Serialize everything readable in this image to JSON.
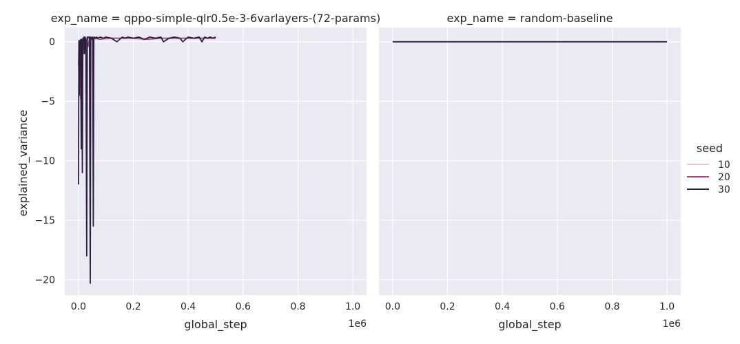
{
  "chart_data": {
    "type": "line",
    "facet_variable": "exp_name",
    "hue_variable": "seed",
    "xlabel": "global_step",
    "ylabel": "explained_variance",
    "x_offset_label": "1e6",
    "x_scale": 1000000,
    "xlim": [
      -50000,
      1050000
    ],
    "ylim": [
      -21.3,
      1.2
    ],
    "xticks": [
      0,
      200000,
      400000,
      600000,
      800000,
      1000000
    ],
    "xtick_labels": [
      "0.0",
      "0.2",
      "0.4",
      "0.6",
      "0.8",
      "1.0"
    ],
    "yticks": [
      0,
      -5,
      -10,
      -15,
      -20
    ],
    "ytick_labels": [
      "0",
      "−5",
      "−10",
      "−15",
      "−20"
    ],
    "grid": true,
    "legend": {
      "title": "seed",
      "placement": "right",
      "entries": [
        {
          "label": "10",
          "color": "#ebc5c7"
        },
        {
          "label": "20",
          "color": "#9b4f7e"
        },
        {
          "label": "30",
          "color": "#2d1e3e"
        }
      ]
    },
    "panels": [
      {
        "title": "exp_name = qppo-simple-qlr0.5e-3-6varlayers-(72-params)",
        "series": [
          {
            "name": "10",
            "color": "#ebc5c7",
            "x": [
              0,
              2000,
              4000,
              6000,
              8000,
              10000,
              12000,
              14000,
              16000,
              20000,
              25000,
              30000,
              40000,
              50000,
              60000,
              80000,
              100000,
              120000,
              150000,
              200000,
              250000,
              300000,
              350000,
              400000,
              450000,
              500000
            ],
            "y": [
              -2.5,
              0.0,
              -1.5,
              0.1,
              -2.0,
              0.0,
              -1.8,
              0.2,
              -0.5,
              0.1,
              -0.4,
              0.2,
              0.1,
              0.2,
              0.2,
              0.3,
              0.2,
              0.3,
              0.3,
              0.3,
              0.3,
              0.3,
              0.3,
              0.3,
              0.3,
              0.3
            ]
          },
          {
            "name": "20",
            "color": "#9b4f7e",
            "x": [
              0,
              2000,
              4000,
              6000,
              8000,
              10000,
              12000,
              15000,
              18000,
              22000,
              26000,
              30000,
              35000,
              40000,
              50000,
              60000,
              80000,
              100000,
              150000,
              200000,
              250000,
              300000,
              350000,
              400000,
              450000,
              500000
            ],
            "y": [
              -2.0,
              0.0,
              -3.0,
              0.1,
              -4.8,
              0.0,
              -2.0,
              0.2,
              -1.0,
              0.3,
              -0.6,
              0.2,
              -0.4,
              0.3,
              0.2,
              0.3,
              0.2,
              0.3,
              0.3,
              0.3,
              0.2,
              0.3,
              0.3,
              0.3,
              0.3,
              0.3
            ]
          },
          {
            "name": "30",
            "color": "#2d1e3e",
            "x": [
              0,
              1500,
              3000,
              4500,
              6000,
              8000,
              10000,
              12000,
              14000,
              16000,
              18000,
              20000,
              22000,
              24000,
              27000,
              30000,
              32000,
              34000,
              36000,
              40000,
              43000,
              45000,
              48000,
              52000,
              54000,
              56000,
              58000,
              62000,
              66000,
              70000,
              80000,
              90000,
              100000,
              120000,
              140000,
              160000,
              170000,
              180000,
              200000,
              220000,
              240000,
              260000,
              280000,
              300000,
              310000,
              330000,
              350000,
              370000,
              380000,
              400000,
              420000,
              440000,
              450000,
              460000,
              470000,
              480000,
              490000,
              500000
            ],
            "y": [
              -12.0,
              0.1,
              -4.5,
              0.1,
              -2.0,
              0.2,
              -9.0,
              0.2,
              -11.0,
              0.3,
              0.0,
              0.4,
              -1.0,
              0.4,
              0.2,
              -18.0,
              0.4,
              0.3,
              0.4,
              0.4,
              -20.3,
              0.4,
              0.3,
              0.4,
              -15.5,
              0.3,
              0.4,
              0.3,
              0.4,
              0.3,
              0.4,
              0.3,
              0.4,
              0.3,
              0.0,
              0.4,
              0.3,
              0.4,
              0.3,
              0.4,
              0.2,
              0.4,
              0.3,
              0.4,
              0.0,
              0.3,
              0.4,
              0.3,
              0.0,
              0.4,
              0.3,
              0.4,
              0.0,
              0.4,
              0.3,
              0.4,
              0.3,
              0.4
            ]
          }
        ]
      },
      {
        "title": "exp_name = random-baseline",
        "series": [
          {
            "name": "10",
            "color": "#ebc5c7",
            "x": [
              0,
              1000000
            ],
            "y": [
              0,
              0
            ]
          },
          {
            "name": "20",
            "color": "#9b4f7e",
            "x": [
              0,
              1000000
            ],
            "y": [
              0,
              0
            ]
          },
          {
            "name": "30",
            "color": "#2d1e3e",
            "x": [
              0,
              1000000
            ],
            "y": [
              0,
              0
            ]
          }
        ]
      }
    ]
  }
}
